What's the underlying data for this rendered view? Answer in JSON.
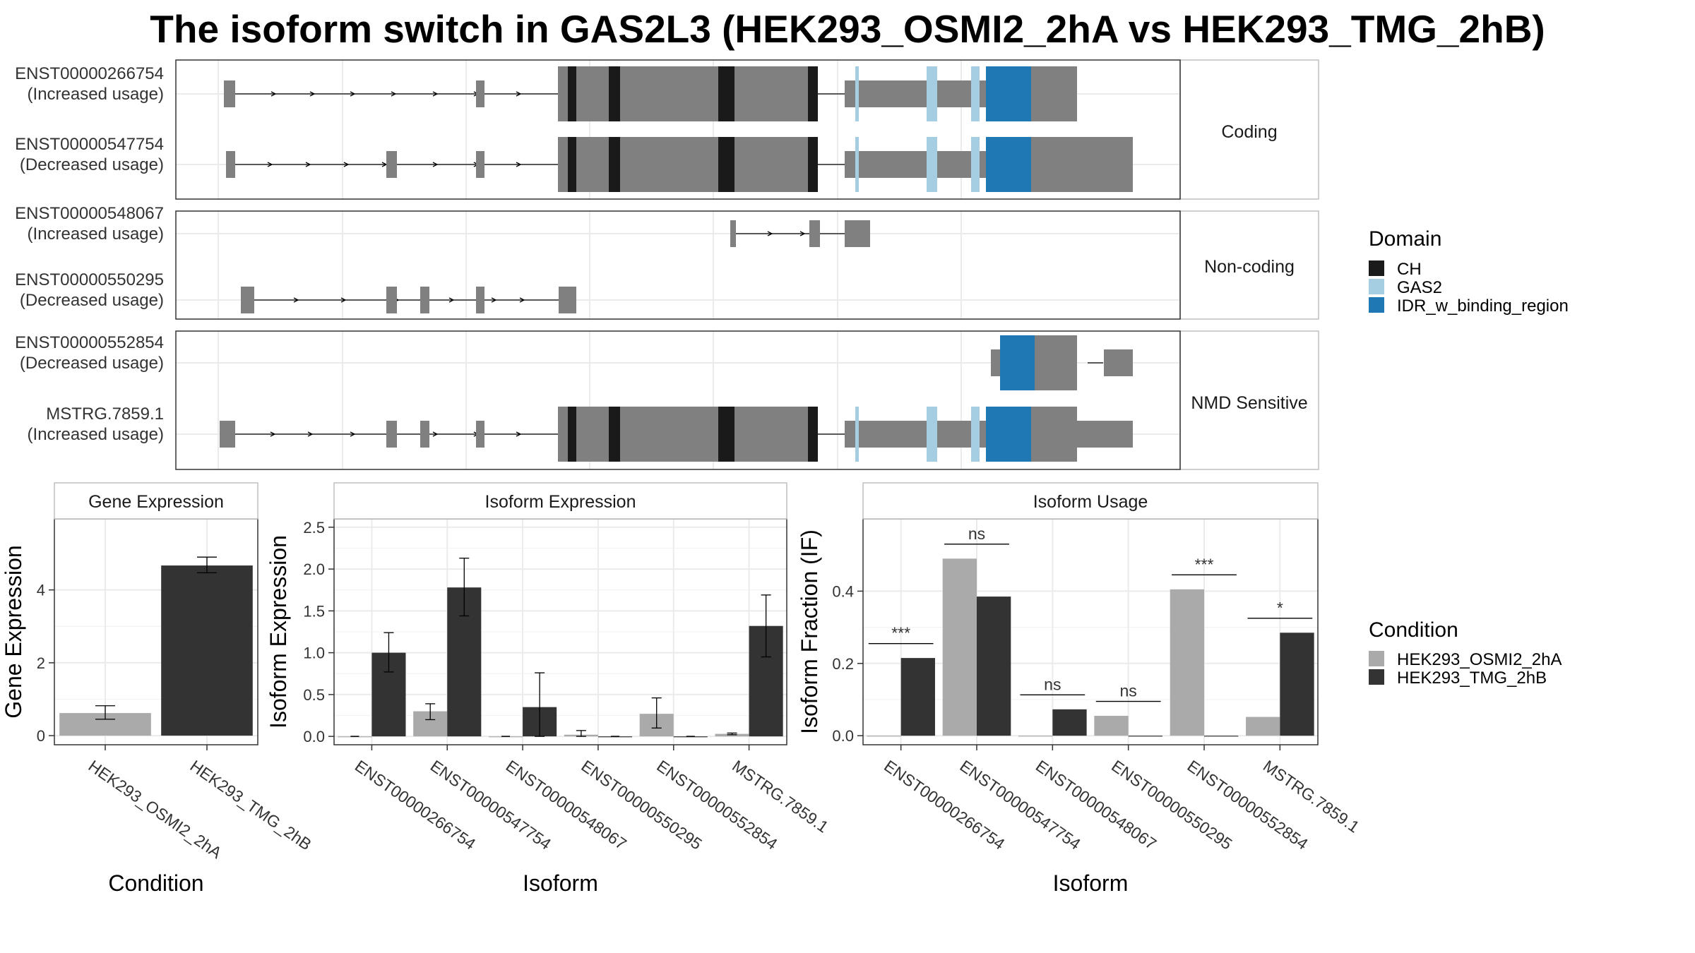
{
  "title": "The isoform switch in GAS2L3 (HEK293_OSMI2_2hA vs HEK293_TMG_2hB)",
  "structure": {
    "groups": [
      {
        "label": "Coding",
        "tracks": [
          {
            "id": "ENST00000266754",
            "usage": "(Increased usage)"
          },
          {
            "id": "ENST00000547754",
            "usage": "(Decreased usage)"
          }
        ]
      },
      {
        "label": "Non-coding",
        "tracks": [
          {
            "id": "ENST00000548067",
            "usage": "(Increased usage)"
          },
          {
            "id": "ENST00000550295",
            "usage": "(Decreased usage)"
          }
        ]
      },
      {
        "label": "NMD Sensitive",
        "tracks": [
          {
            "id": "ENST00000552854",
            "usage": "(Decreased usage)"
          },
          {
            "id": "MSTRG.7859.1",
            "usage": "(Increased usage)"
          }
        ]
      }
    ]
  },
  "domain_legend": {
    "title": "Domain",
    "items": [
      {
        "label": "CH",
        "color": "#1a1a1a"
      },
      {
        "label": "GAS2",
        "color": "#a6cee3"
      },
      {
        "label": "IDR_w_binding_region",
        "color": "#1f78b4"
      }
    ]
  },
  "condition_legend": {
    "title": "Condition",
    "items": [
      {
        "label": "HEK293_OSMI2_2hA",
        "color": "#aaaaaa"
      },
      {
        "label": "HEK293_TMG_2hB",
        "color": "#333333"
      }
    ]
  },
  "chart_data": [
    {
      "type": "bar",
      "title": "Gene Expression",
      "xlabel": "Condition",
      "ylabel": "Gene Expression",
      "categories": [
        "HEK293_OSMI2_2hA",
        "HEK293_TMG_2hB"
      ],
      "values": [
        0.62,
        4.67
      ],
      "errors": [
        [
          0.45,
          0.82
        ],
        [
          4.47,
          4.9
        ]
      ],
      "ylim": [
        -0.25,
        5.95
      ],
      "yticks": [
        0,
        2,
        4
      ]
    },
    {
      "type": "bar",
      "title": "Isoform Expression",
      "xlabel": "Isoform",
      "ylabel": "Isoform Expression",
      "categories": [
        "ENST00000266754",
        "ENST00000547754",
        "ENST00000548067",
        "ENST00000550295",
        "ENST00000552854",
        "MSTRG.7859.1"
      ],
      "series": [
        {
          "name": "HEK293_OSMI2_2hA",
          "values": [
            0.0,
            0.3,
            0.0,
            0.02,
            0.27,
            0.03
          ],
          "errors": [
            [
              0.0,
              0.0
            ],
            [
              0.2,
              0.39
            ],
            [
              0.0,
              0.0
            ],
            [
              0.0,
              0.07
            ],
            [
              0.1,
              0.46
            ],
            [
              0.02,
              0.04
            ]
          ]
        },
        {
          "name": "HEK293_TMG_2hB",
          "values": [
            1.0,
            1.78,
            0.35,
            0.0,
            0.0,
            1.32
          ],
          "errors": [
            [
              0.77,
              1.24
            ],
            [
              1.44,
              2.13
            ],
            [
              0.0,
              0.76
            ],
            [
              0.0,
              0.0
            ],
            [
              0.0,
              0.0
            ],
            [
              0.95,
              1.69
            ]
          ]
        }
      ],
      "ylim": [
        -0.1,
        2.6
      ],
      "yticks": [
        "0.0",
        "0.5",
        "1.0",
        "1.5",
        "2.0",
        "2.5"
      ]
    },
    {
      "type": "bar",
      "title": "Isoform Usage",
      "xlabel": "Isoform",
      "ylabel": "Isoform Fraction (IF)",
      "categories": [
        "ENST00000266754",
        "ENST00000547754",
        "ENST00000548067",
        "ENST00000550295",
        "ENST00000552854",
        "MSTRG.7859.1"
      ],
      "series": [
        {
          "name": "HEK293_OSMI2_2hA",
          "values": [
            0.0,
            0.49,
            0.0,
            0.055,
            0.405,
            0.052
          ]
        },
        {
          "name": "HEK293_TMG_2hB",
          "values": [
            0.215,
            0.385,
            0.073,
            0.0,
            0.0,
            0.285
          ]
        }
      ],
      "significance": [
        "***",
        "ns",
        "ns",
        "ns",
        "***",
        "*"
      ],
      "ylim": [
        -0.025,
        0.6
      ],
      "yticks": [
        "0.0",
        "0.2",
        "0.4"
      ]
    }
  ]
}
